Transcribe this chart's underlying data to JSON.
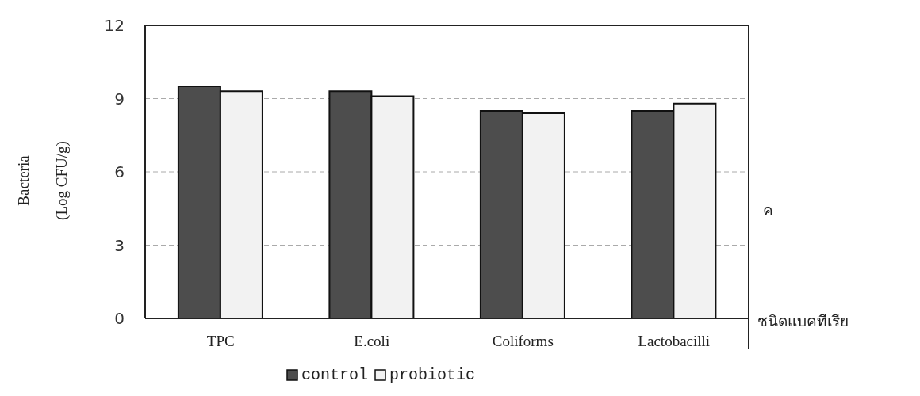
{
  "chart_data": {
    "type": "bar",
    "xlabel": "ชนิดแบคทีเรีย",
    "ylabel": "Bacteria (Log CFU/g)",
    "categories": [
      "TPC",
      "E.coli",
      "Coliforms",
      "Lactobacilli"
    ],
    "series": [
      {
        "name": "control",
        "color": "#4d4d4d",
        "values": [
          9.5,
          9.3,
          8.5,
          8.5
        ]
      },
      {
        "name": "probiotic",
        "color": "#f2f2f2",
        "values": [
          9.3,
          9.1,
          8.4,
          8.8
        ]
      }
    ],
    "ylim": [
      0,
      12
    ],
    "yticks": [
      0,
      3,
      6,
      9,
      12
    ],
    "grid": "y",
    "legend": "bottom",
    "annotations": [
      "ค"
    ]
  }
}
